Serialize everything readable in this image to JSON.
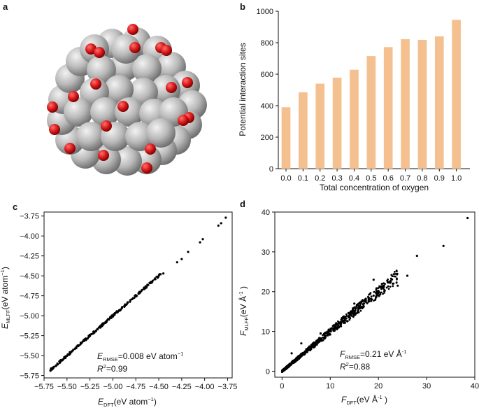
{
  "panels": {
    "a": {
      "label": "a",
      "colors": {
        "oxygen": "#d91a1a",
        "metal": "#b9b9b9"
      }
    },
    "b": {
      "label": "b"
    },
    "c": {
      "label": "c",
      "xlabel_pre": "E",
      "xlabel_sub": "DFT",
      "xlabel_post": "(eV atom",
      "xlabel_sup": "−1",
      "xlabel_end": ")",
      "ylabel_pre": "E",
      "ylabel_sub": "MLFF",
      "ylabel_post": "(eV atom",
      "ylabel_sup": "−1",
      "ylabel_end": ")",
      "metric1_pre": "E",
      "metric1_sub": "RMSE",
      "metric1_val": "=0.008 eV atom",
      "metric1_sup": "−1",
      "metric2_pre": "R",
      "metric2_sup": "2",
      "metric2_val": "=0.99"
    },
    "d": {
      "label": "d",
      "xlabel_pre": "F",
      "xlabel_sub": "DFT",
      "xlabel_post": "(eV Å",
      "xlabel_sup": "-1",
      "xlabel_end": " )",
      "ylabel_pre": "F",
      "ylabel_sub": "MLFF",
      "ylabel_post": "(eV Å",
      "ylabel_sup": "-1",
      "ylabel_end": " )",
      "metric1_pre": "F",
      "metric1_sub": "RMSE",
      "metric1_val": "=0.21 eV Å",
      "metric1_sup": "-1",
      "metric2_pre": "R",
      "metric2_sup": "2",
      "metric2_val": "=0.88"
    }
  },
  "colors": {
    "bar": "#f5c08f",
    "point": "#000000",
    "axis": "#111111"
  },
  "chart_data": [
    {
      "panel": "b",
      "type": "bar",
      "xlabel": "Total concentration of oxygen",
      "ylabel": "Potential interaction sites",
      "categories": [
        "0.0",
        "0.1",
        "0.2",
        "0.3",
        "0.4",
        "0.5",
        "0.6",
        "0.7",
        "0.8",
        "0.9",
        "1.0"
      ],
      "values": [
        390,
        485,
        540,
        578,
        628,
        715,
        772,
        822,
        818,
        840,
        945
      ],
      "ylim": [
        0,
        1000
      ],
      "yticks": [
        0,
        200,
        400,
        600,
        800,
        1000
      ],
      "grid": false
    },
    {
      "panel": "c",
      "type": "scatter",
      "xlim": [
        -5.75,
        -3.7
      ],
      "ylim": [
        -5.78,
        -3.7
      ],
      "xticks": [
        -5.75,
        -5.5,
        -5.25,
        -5.0,
        -4.75,
        -4.5,
        -4.25,
        -4.0,
        -3.75
      ],
      "xtick_labels": [
        "−5.75",
        "−5.50",
        "−5.25",
        "−5.00",
        "−4.75",
        "−4.50",
        "−4.25",
        "−4.00",
        "−3.75"
      ],
      "yticks": [
        -5.75,
        -5.5,
        -5.25,
        -5.0,
        -4.75,
        -4.5,
        -4.25,
        -4.0,
        -3.75
      ],
      "ytick_labels": [
        "−5.75",
        "−5.50",
        "−5.25",
        "−5.00",
        "−4.75",
        "−4.50",
        "−4.25",
        "−4.00",
        "−3.75"
      ],
      "x": [
        -5.68,
        -5.65,
        -5.62,
        -5.6,
        -5.58,
        -5.55,
        -5.52,
        -5.5,
        -5.47,
        -5.44,
        -5.41,
        -5.38,
        -5.35,
        -5.32,
        -5.29,
        -5.26,
        -5.23,
        -5.2,
        -5.17,
        -5.14,
        -5.11,
        -5.08,
        -5.05,
        -5.02,
        -4.99,
        -4.96,
        -4.93,
        -4.9,
        -4.87,
        -4.84,
        -4.81,
        -4.78,
        -4.75,
        -4.72,
        -4.69,
        -4.66,
        -4.63,
        -4.6,
        -4.57,
        -4.54,
        -4.51,
        -4.48,
        -4.45,
        -4.3,
        -4.25,
        -4.18,
        -4.05,
        -4.02,
        -3.85,
        -3.82,
        -3.77
      ],
      "y": [
        -5.69,
        -5.66,
        -5.63,
        -5.61,
        -5.58,
        -5.56,
        -5.53,
        -5.5,
        -5.47,
        -5.44,
        -5.41,
        -5.38,
        -5.35,
        -5.32,
        -5.29,
        -5.26,
        -5.23,
        -5.2,
        -5.17,
        -5.14,
        -5.11,
        -5.08,
        -5.04,
        -5.02,
        -4.98,
        -4.95,
        -4.93,
        -4.9,
        -4.87,
        -4.84,
        -4.81,
        -4.78,
        -4.75,
        -4.72,
        -4.69,
        -4.66,
        -4.63,
        -4.59,
        -4.57,
        -4.54,
        -4.51,
        -4.48,
        -4.47,
        -4.33,
        -4.29,
        -4.2,
        -4.08,
        -4.04,
        -3.87,
        -3.84,
        -3.77
      ]
    },
    {
      "panel": "d",
      "type": "scatter",
      "xlim": [
        -1.5,
        40
      ],
      "ylim": [
        -1.5,
        40
      ],
      "xticks": [
        0,
        10,
        20,
        30,
        40
      ],
      "xtick_labels": [
        "0",
        "10",
        "20",
        "30",
        "40"
      ],
      "yticks": [
        0,
        10,
        20,
        30,
        40
      ],
      "ytick_labels": [
        "0",
        "10",
        "20",
        "30",
        "40"
      ],
      "x": [
        0.2,
        0.5,
        0.8,
        1.0,
        1.5,
        2.0,
        2.5,
        3.0,
        3.5,
        4.0,
        5.0,
        6.0,
        7.0,
        8.0,
        9.0,
        10.0,
        11.0,
        12.0,
        13.0,
        14.0,
        15.0,
        16.0,
        17.0,
        18.0,
        19.0,
        20.0,
        21.0,
        22.0,
        23.0,
        24.0,
        2.0,
        4.0,
        8.0,
        15.0,
        19.0,
        26.0,
        28.0,
        33.5,
        38.5
      ],
      "y": [
        0.3,
        0.6,
        0.9,
        1.2,
        1.4,
        2.0,
        2.6,
        3.1,
        3.4,
        4.1,
        5.1,
        6.0,
        7.2,
        8.0,
        8.9,
        10.1,
        11.2,
        12.0,
        12.8,
        14.1,
        15.0,
        16.2,
        17.0,
        18.1,
        19.0,
        20.2,
        21.0,
        22.3,
        22.0,
        21.5,
        4.5,
        7.0,
        9.5,
        17.0,
        23.0,
        24.0,
        29.0,
        31.5,
        38.5
      ]
    }
  ]
}
